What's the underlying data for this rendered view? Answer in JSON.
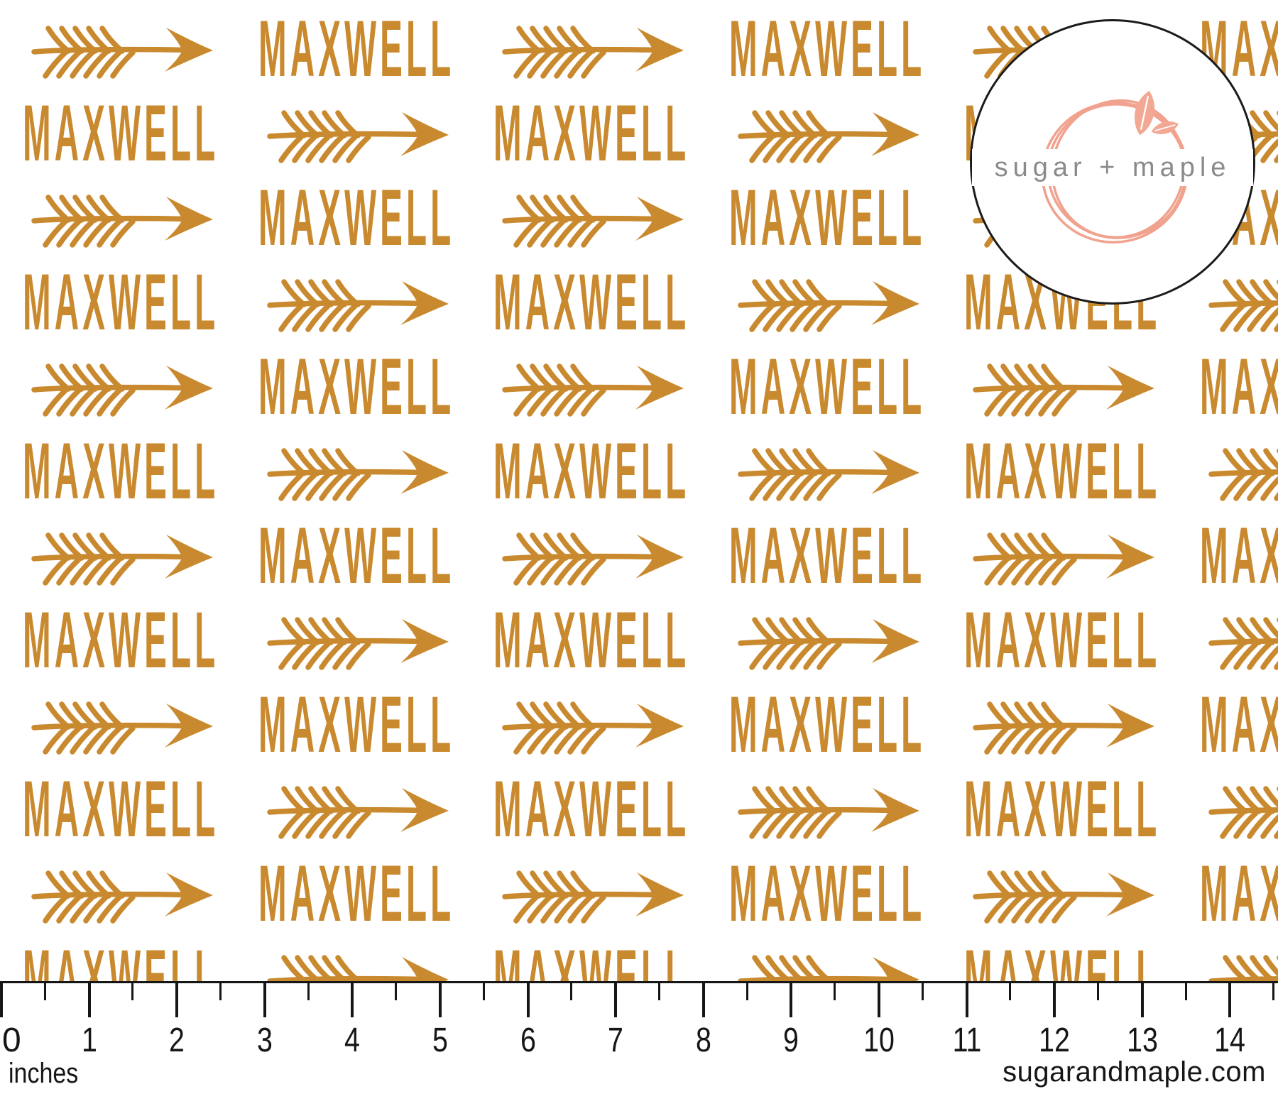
{
  "pattern": {
    "name": "MAXWELL",
    "color": "#C9892E",
    "background": "#FFFFFF",
    "rows": [
      {
        "lead": "arrow"
      },
      {
        "lead": "name"
      },
      {
        "lead": "arrow"
      },
      {
        "lead": "name"
      },
      {
        "lead": "arrow"
      },
      {
        "lead": "name"
      },
      {
        "lead": "arrow"
      },
      {
        "lead": "name"
      },
      {
        "lead": "arrow"
      },
      {
        "lead": "name"
      },
      {
        "lead": "arrow"
      },
      {
        "lead": "name"
      }
    ]
  },
  "logo": {
    "text": "sugar + maple",
    "text_color": "#8A8A8A",
    "wreath_color": "#F0A28E",
    "leaf_color": "#F2A893",
    "border_color": "#1B1B1B"
  },
  "ruler": {
    "numbers": [
      "0",
      "1",
      "2",
      "3",
      "4",
      "5",
      "6",
      "7",
      "8",
      "9",
      "10",
      "11",
      "12",
      "13",
      "14"
    ],
    "unit_label": "inches",
    "website": "sugarandmaple.com",
    "color": "#161616"
  }
}
